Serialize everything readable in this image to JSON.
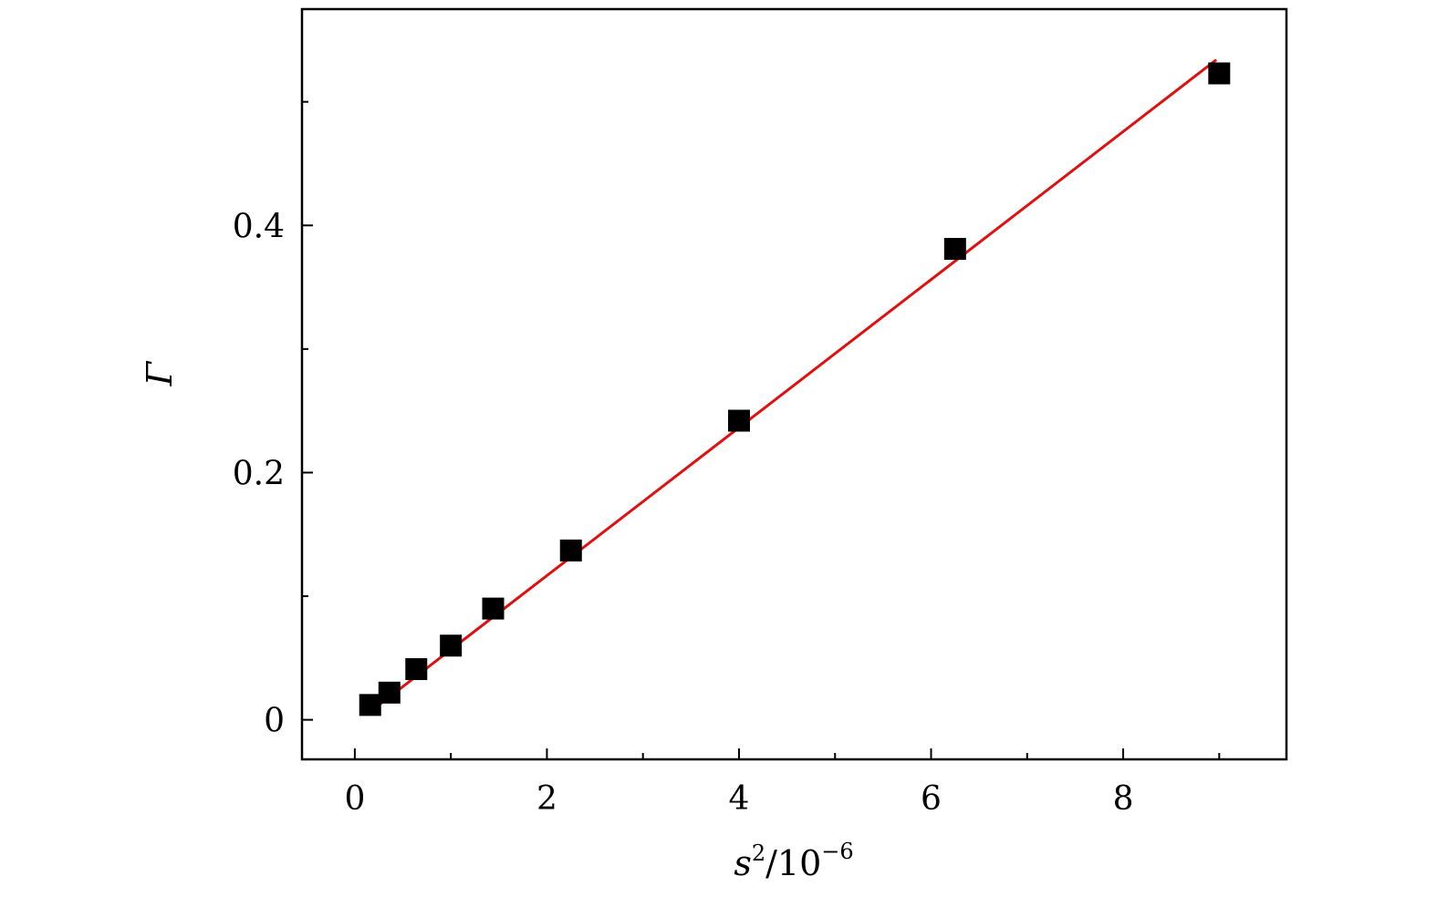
{
  "chart_data": {
    "type": "scatter",
    "xlabel": {
      "var": "s",
      "power": "2",
      "rest": "/10",
      "exponent": "−6"
    },
    "ylabel": "Γ",
    "xlim": [
      -0.55,
      9.7
    ],
    "ylim": [
      -0.032,
      0.575
    ],
    "x_ticks": [
      {
        "value": 0,
        "label": "0"
      },
      {
        "value": 2,
        "label": "2"
      },
      {
        "value": 4,
        "label": "4"
      },
      {
        "value": 6,
        "label": "6"
      },
      {
        "value": 8,
        "label": "8"
      }
    ],
    "x_minor_ticks": [
      1,
      3,
      5,
      7,
      9
    ],
    "y_ticks": [
      {
        "value": 0,
        "label": "0"
      },
      {
        "value": 0.2,
        "label": "0.2"
      },
      {
        "value": 0.4,
        "label": "0.4"
      }
    ],
    "y_minor_ticks": [
      0.1,
      0.3,
      0.5
    ],
    "grid": false,
    "series": [
      {
        "marker": "square",
        "color": "#000000",
        "points": [
          {
            "x": 0.16,
            "y": 0.012
          },
          {
            "x": 0.36,
            "y": 0.022
          },
          {
            "x": 0.64,
            "y": 0.041
          },
          {
            "x": 1.0,
            "y": 0.06
          },
          {
            "x": 1.44,
            "y": 0.09
          },
          {
            "x": 2.25,
            "y": 0.137
          },
          {
            "x": 4.0,
            "y": 0.242
          },
          {
            "x": 6.25,
            "y": 0.381
          },
          {
            "x": 9.0,
            "y": 0.523
          }
        ]
      }
    ],
    "fit_line": {
      "color": "#e01010",
      "x": [
        0.16,
        8.97
      ],
      "y": [
        0.0065,
        0.534
      ]
    }
  }
}
